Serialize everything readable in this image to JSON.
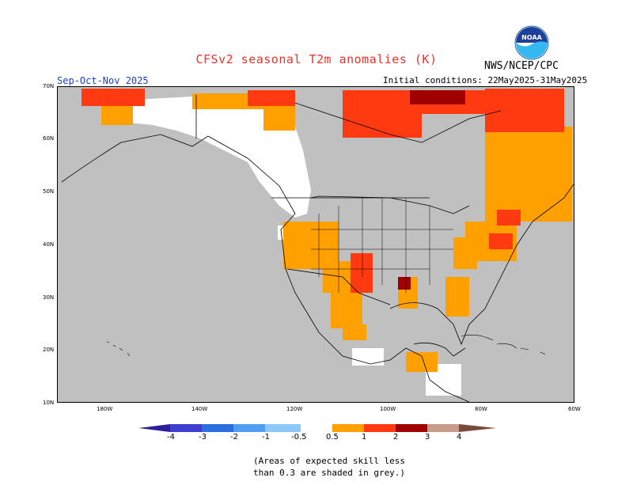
{
  "header": {
    "title": "CFSv2 seasonal T2m anomalies (K)",
    "agency": "NWS/NCEP/CPC",
    "season": "Sep-Oct-Nov 2025",
    "initial_conditions": "Initial conditions: 22May2025-31May2025"
  },
  "logo": {
    "text": "NOAA"
  },
  "map": {
    "region": "North America",
    "lat_labels": [
      "70N",
      "60N",
      "50N",
      "40N",
      "30N",
      "20N",
      "10N"
    ],
    "lon_labels": [
      "180W",
      "140W",
      "120W",
      "100W",
      "80W",
      "60W"
    ],
    "background_color": "#c0c0c0"
  },
  "colorbar": {
    "labels": [
      "-4",
      "-3",
      "-2",
      "-1",
      "-0.5",
      "0.5",
      "1",
      "2",
      "3",
      "4"
    ],
    "colors": [
      "#2d1e9e",
      "#3c3fd0",
      "#2a6fe0",
      "#4f9ef0",
      "#8cc8f8",
      "#ffffff",
      "#ff9f00",
      "#ff3a10",
      "#a00000",
      "#c89a8a",
      "#7a4a3a"
    ]
  },
  "footnote": {
    "line1": "(Areas of expected skill less",
    "line2": "than 0.3 are shaded in grey.)"
  }
}
